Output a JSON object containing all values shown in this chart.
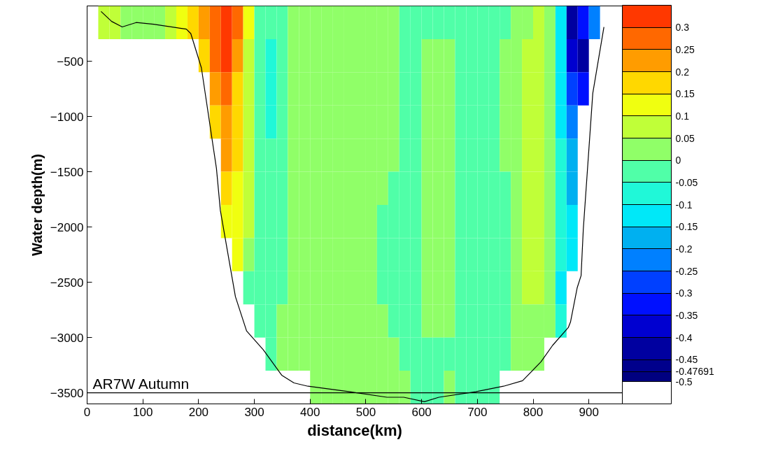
{
  "chart_data": {
    "type": "heatmap",
    "xlabel": "distance(km)",
    "ylabel": "Water depth(m)",
    "xlim": [
      0,
      960
    ],
    "ylim": [
      -3600,
      0
    ],
    "xticks": [
      0,
      100,
      200,
      300,
      400,
      500,
      600,
      700,
      800,
      900
    ],
    "yticks": [
      -500,
      -1000,
      -1500,
      -2000,
      -2500,
      -3000,
      -3500
    ],
    "grid": false,
    "x": [
      10,
      30,
      50,
      70,
      90,
      110,
      130,
      150,
      170,
      190,
      210,
      230,
      250,
      270,
      290,
      310,
      330,
      350,
      370,
      390,
      410,
      430,
      450,
      470,
      490,
      510,
      530,
      550,
      570,
      590,
      610,
      630,
      650,
      670,
      690,
      710,
      730,
      750,
      770,
      790,
      810,
      830,
      850,
      870,
      890,
      910,
      930,
      950
    ],
    "y": [
      -150,
      -450,
      -750,
      -1050,
      -1350,
      -1650,
      -1950,
      -2250,
      -2550,
      -2850,
      -3150,
      -3450
    ],
    "clim": [
      -0.55,
      0.35
    ],
    "cticks": [
      -0.5,
      -0.47691,
      -0.45,
      -0.4,
      -0.35,
      -0.3,
      -0.25,
      -0.2,
      -0.15,
      -0.1,
      -0.05,
      0,
      0.05,
      0.1,
      0.15,
      0.2,
      0.25,
      0.3
    ],
    "colors": [
      "#ffffff",
      "#000080",
      "#00008c",
      "#0000a0",
      "#0000d0",
      "#0010ff",
      "#0040ff",
      "#0080ff",
      "#00b0f0",
      "#00e8f8",
      "#20f8d8",
      "#50ffa8",
      "#90ff68",
      "#c0ff38",
      "#f0ff10",
      "#ffd800",
      "#ff9c00",
      "#ff6800",
      "#ff3800"
    ],
    "cells": [
      [
        null,
        0.075,
        0.075,
        0.025,
        0.025,
        0.025,
        0.025,
        0.075,
        0.125,
        0.175,
        0.225,
        0.275,
        0.325,
        0.275,
        0.125,
        -0.025,
        -0.025,
        -0.025,
        0.025,
        0.025,
        0.025,
        0.025,
        0.025,
        0.025,
        0.025,
        0.025,
        0.025,
        0.025,
        -0.025,
        -0.025,
        -0.025,
        -0.025,
        -0.025,
        -0.025,
        -0.025,
        -0.025,
        -0.025,
        -0.025,
        0.025,
        0.025,
        0.075,
        0.025,
        -0.125,
        -0.425,
        -0.325,
        -0.225,
        null,
        null
      ],
      [
        null,
        null,
        null,
        null,
        null,
        null,
        null,
        null,
        null,
        null,
        0.175,
        0.275,
        0.325,
        0.225,
        0.075,
        -0.025,
        -0.075,
        -0.025,
        0.025,
        0.025,
        0.025,
        0.025,
        0.025,
        0.025,
        0.025,
        0.025,
        0.025,
        0.025,
        -0.025,
        -0.025,
        0.025,
        0.025,
        0.025,
        -0.025,
        -0.025,
        -0.025,
        -0.025,
        0.025,
        0.025,
        0.075,
        0.075,
        0.025,
        -0.125,
        -0.375,
        -0.425,
        null,
        null,
        null
      ],
      [
        null,
        null,
        null,
        null,
        null,
        null,
        null,
        null,
        null,
        null,
        null,
        0.225,
        0.275,
        0.175,
        0.075,
        -0.025,
        -0.075,
        -0.025,
        0.025,
        0.025,
        0.025,
        0.025,
        0.025,
        0.025,
        0.025,
        0.025,
        0.025,
        0.025,
        -0.025,
        -0.025,
        0.025,
        0.025,
        0.025,
        -0.025,
        -0.025,
        -0.025,
        -0.025,
        0.025,
        0.025,
        0.075,
        0.075,
        0.025,
        -0.125,
        -0.275,
        -0.325,
        null,
        null,
        null
      ],
      [
        null,
        null,
        null,
        null,
        null,
        null,
        null,
        null,
        null,
        null,
        null,
        0.175,
        0.225,
        0.175,
        0.075,
        -0.025,
        -0.075,
        -0.025,
        0.025,
        0.025,
        0.025,
        0.025,
        0.025,
        0.025,
        0.025,
        0.025,
        0.025,
        0.025,
        -0.025,
        -0.025,
        0.025,
        0.025,
        0.025,
        -0.025,
        -0.025,
        -0.025,
        -0.025,
        0.025,
        0.025,
        0.075,
        0.075,
        0.025,
        -0.125,
        -0.225,
        null,
        null,
        null,
        null
      ],
      [
        null,
        null,
        null,
        null,
        null,
        null,
        null,
        null,
        null,
        null,
        null,
        null,
        0.225,
        0.175,
        0.075,
        -0.025,
        -0.025,
        -0.025,
        0.025,
        0.025,
        0.025,
        0.025,
        0.025,
        0.025,
        0.025,
        0.025,
        0.025,
        0.025,
        -0.025,
        -0.025,
        0.025,
        0.025,
        0.025,
        -0.025,
        -0.025,
        -0.025,
        -0.025,
        0.025,
        0.025,
        0.075,
        0.075,
        0.025,
        -0.075,
        -0.175,
        null,
        null,
        null,
        null
      ],
      [
        null,
        null,
        null,
        null,
        null,
        null,
        null,
        null,
        null,
        null,
        null,
        null,
        0.175,
        0.125,
        0.075,
        -0.025,
        -0.025,
        -0.025,
        0.025,
        0.025,
        0.025,
        0.025,
        0.025,
        0.025,
        0.025,
        0.025,
        0.025,
        -0.025,
        -0.025,
        -0.025,
        0.025,
        0.025,
        0.025,
        -0.025,
        -0.025,
        -0.025,
        -0.025,
        -0.025,
        0.025,
        0.075,
        0.075,
        0.025,
        -0.075,
        -0.175,
        null,
        null,
        null,
        null
      ],
      [
        null,
        null,
        null,
        null,
        null,
        null,
        null,
        null,
        null,
        null,
        null,
        null,
        0.125,
        0.125,
        0.075,
        -0.025,
        -0.025,
        -0.025,
        0.025,
        0.025,
        0.025,
        0.025,
        0.025,
        0.025,
        0.025,
        0.025,
        -0.025,
        -0.025,
        -0.025,
        -0.025,
        0.025,
        0.025,
        0.025,
        -0.025,
        -0.025,
        -0.025,
        -0.025,
        -0.025,
        0.025,
        0.075,
        0.075,
        0.025,
        -0.075,
        -0.125,
        null,
        null,
        null,
        null
      ],
      [
        null,
        null,
        null,
        null,
        null,
        null,
        null,
        null,
        null,
        null,
        null,
        null,
        null,
        0.125,
        0.025,
        -0.025,
        -0.025,
        -0.025,
        0.025,
        0.025,
        0.025,
        0.025,
        0.025,
        0.025,
        0.025,
        0.025,
        -0.025,
        -0.025,
        -0.025,
        -0.025,
        0.025,
        0.025,
        0.025,
        -0.025,
        -0.025,
        -0.025,
        -0.025,
        -0.025,
        0.025,
        0.075,
        0.075,
        0.025,
        -0.075,
        -0.125,
        null,
        null,
        null,
        null
      ],
      [
        null,
        null,
        null,
        null,
        null,
        null,
        null,
        null,
        null,
        null,
        null,
        null,
        null,
        null,
        -0.025,
        -0.025,
        -0.025,
        -0.025,
        0.025,
        0.025,
        0.025,
        0.025,
        0.025,
        0.025,
        0.025,
        0.025,
        -0.025,
        -0.025,
        -0.025,
        -0.025,
        0.025,
        0.025,
        0.025,
        -0.025,
        -0.025,
        -0.025,
        -0.025,
        -0.025,
        0.025,
        0.075,
        0.075,
        0.025,
        -0.125,
        null,
        null,
        null,
        null,
        null
      ],
      [
        null,
        null,
        null,
        null,
        null,
        null,
        null,
        null,
        null,
        null,
        null,
        null,
        null,
        null,
        null,
        -0.025,
        -0.025,
        0.025,
        0.025,
        0.025,
        0.025,
        0.025,
        0.025,
        0.025,
        0.025,
        0.025,
        0.025,
        -0.025,
        -0.025,
        -0.025,
        0.025,
        0.025,
        0.025,
        -0.025,
        -0.025,
        -0.025,
        -0.025,
        -0.025,
        0.025,
        0.025,
        0.025,
        0.025,
        -0.075,
        null,
        null,
        null,
        null,
        null
      ],
      [
        null,
        null,
        null,
        null,
        null,
        null,
        null,
        null,
        null,
        null,
        null,
        null,
        null,
        null,
        null,
        null,
        -0.025,
        0.025,
        0.025,
        0.025,
        0.025,
        0.025,
        0.025,
        0.025,
        0.025,
        0.025,
        0.025,
        0.025,
        -0.025,
        -0.025,
        -0.025,
        -0.025,
        -0.025,
        -0.025,
        -0.025,
        -0.025,
        -0.025,
        -0.025,
        0.025,
        0.025,
        0.025,
        null,
        null,
        null,
        null,
        null,
        null,
        null
      ],
      [
        null,
        null,
        null,
        null,
        null,
        null,
        null,
        null,
        null,
        null,
        null,
        null,
        null,
        null,
        null,
        null,
        null,
        null,
        null,
        null,
        0.025,
        0.025,
        0.025,
        0.025,
        0.025,
        0.025,
        0.025,
        0.025,
        0.025,
        -0.025,
        -0.025,
        -0.025,
        0.025,
        -0.025,
        -0.025,
        -0.025,
        -0.025,
        null,
        null,
        null,
        null,
        null,
        null,
        null,
        null,
        null,
        null,
        null
      ]
    ],
    "series": [
      {
        "type": "line",
        "color": "#000000",
        "x": [
          25,
          44,
          63,
          88,
          119,
          178,
          186,
          205,
          232,
          239,
          266,
          286,
          316,
          349,
          371,
          396,
          471,
          538,
          568,
          605,
          631,
          697,
          747,
          781,
          814,
          835,
          863,
          867,
          879,
          886,
          890,
          907,
          927
        ],
        "values": [
          -50,
          -140,
          -190,
          -150,
          -165,
          -210,
          -250,
          -560,
          -1470,
          -1850,
          -2630,
          -2940,
          -3110,
          -3340,
          -3410,
          -3440,
          -3490,
          -3540,
          -3540,
          -3580,
          -3540,
          -3490,
          -3440,
          -3390,
          -3220,
          -3070,
          -2910,
          -2860,
          -2550,
          -2440,
          -2020,
          -790,
          -190
        ]
      }
    ],
    "ref_lines": [
      {
        "axis": "y",
        "value": -3500,
        "label": "AR7W  Autumn",
        "color": "#000000"
      }
    ]
  }
}
